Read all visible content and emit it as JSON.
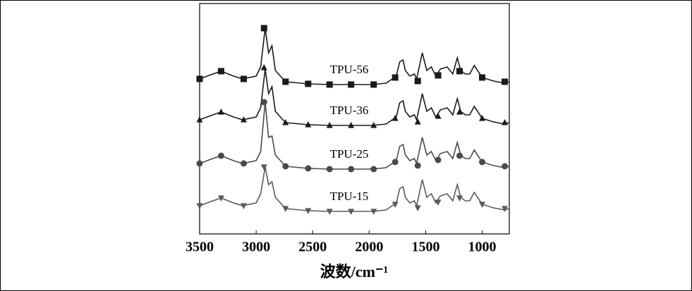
{
  "chart_data": {
    "type": "line",
    "x_label": "波数/cm⁻¹",
    "x": [
      3500,
      3400,
      3310,
      3200,
      3120,
      3000,
      2960,
      2920,
      2890,
      2860,
      2830,
      2740,
      2540,
      2350,
      2160,
      1970,
      1850,
      1760,
      1730,
      1700,
      1680,
      1640,
      1600,
      1580,
      1530,
      1490,
      1450,
      1410,
      1370,
      1310,
      1260,
      1220,
      1190,
      1150,
      1110,
      1070,
      1000,
      900,
      800,
      760
    ],
    "marker_x": [
      3500,
      3310,
      3110,
      2930,
      2740,
      2540,
      2350,
      2160,
      1960,
      1770,
      1570,
      1390,
      1200,
      1000,
      800
    ],
    "series": [
      {
        "name": "TPU-56",
        "color": "#1a1a1a",
        "marker": "square",
        "values": [
          220,
          226,
          231,
          224,
          220,
          224,
          237,
          292,
          257,
          267,
          232,
          216,
          213,
          212,
          212,
          212,
          214,
          224,
          244,
          247,
          232,
          224,
          227,
          220,
          257,
          232,
          237,
          224,
          234,
          237,
          227,
          250,
          232,
          227,
          227,
          239,
          222,
          217,
          214,
          216
        ],
        "marker_values": [
          220,
          231,
          220,
          292,
          216,
          213,
          212,
          212,
          212,
          222,
          217,
          225,
          231,
          222,
          216
        ]
      },
      {
        "name": "TPU-36",
        "color": "#1a1a1a",
        "marker": "triangle",
        "values": [
          162,
          168,
          173,
          166,
          162,
          166,
          179,
          234,
          199,
          209,
          174,
          158,
          155,
          154,
          154,
          154,
          156,
          166,
          186,
          189,
          174,
          166,
          169,
          162,
          199,
          174,
          179,
          166,
          176,
          179,
          169,
          192,
          174,
          169,
          169,
          181,
          164,
          159,
          156,
          158
        ],
        "marker_values": [
          162,
          173,
          162,
          236,
          158,
          155,
          154,
          154,
          154,
          164,
          159,
          167,
          173,
          164,
          158
        ]
      },
      {
        "name": "TPU-25",
        "color": "#4a4a4a",
        "marker": "circle",
        "values": [
          100,
          106,
          111,
          104,
          100,
          104,
          117,
          187,
          137,
          139,
          112,
          96,
          93,
          92,
          92,
          92,
          94,
          104,
          124,
          127,
          112,
          104,
          107,
          100,
          137,
          112,
          117,
          104,
          114,
          117,
          107,
          130,
          112,
          107,
          107,
          119,
          102,
          97,
          94,
          96
        ],
        "marker_values": [
          100,
          111,
          100,
          187,
          96,
          93,
          92,
          92,
          92,
          102,
          97,
          105,
          111,
          102,
          96
        ]
      },
      {
        "name": "TPU-15",
        "color": "#5a5a5a",
        "marker": "triangle-down",
        "values": [
          40,
          46,
          51,
          44,
          40,
          44,
          57,
          95,
          70,
          74,
          52,
          36,
          33,
          32,
          32,
          32,
          34,
          44,
          64,
          67,
          52,
          44,
          47,
          40,
          77,
          52,
          57,
          44,
          54,
          57,
          47,
          70,
          52,
          47,
          47,
          59,
          42,
          37,
          34,
          36
        ],
        "marker_values": [
          40,
          51,
          40,
          95,
          36,
          33,
          32,
          32,
          32,
          42,
          37,
          45,
          51,
          42,
          36
        ]
      }
    ],
    "xlim": [
      3500,
      760
    ],
    "ylim": [
      0,
      327
    ],
    "xticks": [
      3500,
      3000,
      2500,
      2000,
      1500,
      1000
    ]
  }
}
